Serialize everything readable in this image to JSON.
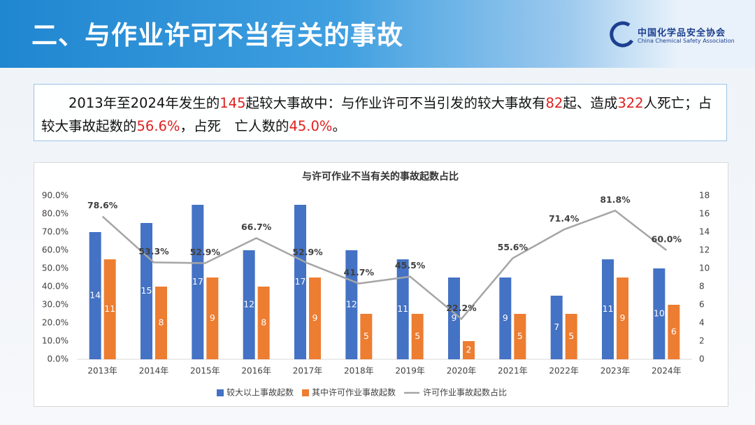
{
  "header": {
    "title": "二、与作业许可不当有关的事故",
    "org_cn": "中国化学品安全协会",
    "org_en": "China Chemical Safety Association"
  },
  "summary": [
    {
      "text": "2013年至2024年发生的"
    },
    {
      "text": "145",
      "highlight": true
    },
    {
      "text": "起较大事故中：与作业许可不当引发的较大事故有"
    },
    {
      "text": "82",
      "highlight": true
    },
    {
      "text": "起、造成"
    },
    {
      "text": "322",
      "highlight": true
    },
    {
      "text": "人死亡；占较大事故起数的"
    },
    {
      "text": "56.6%",
      "highlight": true
    },
    {
      "text": "，占死　亡人数的"
    },
    {
      "text": "45.0%",
      "highlight": true
    },
    {
      "text": "。"
    }
  ],
  "chart_data": {
    "type": "bar",
    "title": "与许可作业不当有关的事故起数占比",
    "categories": [
      "2013年",
      "2014年",
      "2015年",
      "2016年",
      "2017年",
      "2018年",
      "2019年",
      "2020年",
      "2021年",
      "2022年",
      "2023年",
      "2024年"
    ],
    "series": [
      {
        "name": "较大以上事故起数",
        "color": "#4472c4",
        "axis": "y2",
        "values": [
          14,
          15,
          17,
          12,
          17,
          12,
          11,
          9,
          9,
          7,
          11,
          10
        ]
      },
      {
        "name": "其中许可作业事故起数",
        "color": "#ed7d31",
        "axis": "y2",
        "values": [
          11,
          8,
          9,
          8,
          9,
          5,
          5,
          2,
          5,
          5,
          9,
          6
        ]
      },
      {
        "name": "许可作业事故起数占比",
        "color": "#a5a5a5",
        "type": "line",
        "axis": "y",
        "values": [
          78.6,
          53.3,
          52.9,
          66.7,
          52.9,
          41.7,
          45.5,
          22.2,
          55.6,
          71.4,
          81.8,
          60.0
        ],
        "value_labels": [
          "78.6%",
          "53.3%",
          "52.9%",
          "66.7%",
          "52.9%",
          "41.7%",
          "45.5%",
          "22.2%",
          "55.6%",
          "71.4%",
          "81.8%",
          "60.0%"
        ]
      }
    ],
    "ylim": [
      0,
      90
    ],
    "yticks": [
      {
        "value": 0,
        "label": "0.0%"
      },
      {
        "value": 10,
        "label": "10.0%"
      },
      {
        "value": 20,
        "label": "20.0%"
      },
      {
        "value": 30,
        "label": "30.0%"
      },
      {
        "value": 40,
        "label": "40.0%"
      },
      {
        "value": 50,
        "label": "50.0%"
      },
      {
        "value": 60,
        "label": "60.0%"
      },
      {
        "value": 70,
        "label": "70.0%"
      },
      {
        "value": 80,
        "label": "80.0%"
      },
      {
        "value": 90,
        "label": "90.0%"
      }
    ],
    "y2lim": [
      0,
      18
    ],
    "y2ticks": [
      0,
      2,
      4,
      6,
      8,
      10,
      12,
      14,
      16,
      18
    ],
    "legend": "bottom"
  }
}
